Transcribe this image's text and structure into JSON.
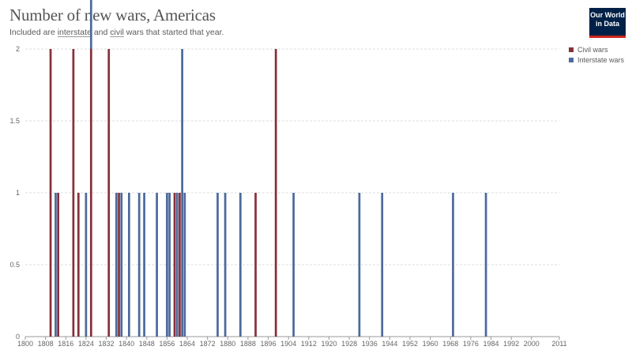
{
  "header": {
    "title": "Number of new wars, Americas",
    "subtitle_parts": [
      "Included are ",
      "interstate",
      " and ",
      "civil",
      " wars that started that year."
    ]
  },
  "logo": {
    "line1": "Our World",
    "line2": "in Data"
  },
  "colors": {
    "civil": "#883039",
    "interstate": "#4c6a9c",
    "grid": "#dddddd",
    "axis": "#999999",
    "logo_bg": "#002147",
    "logo_accent": "#ce261e"
  },
  "chart_data": {
    "type": "bar",
    "stacked": true,
    "title": "Number of new wars, Americas",
    "subtitle": "Included are interstate and civil wars that started that year.",
    "xlabel": "",
    "ylabel": "",
    "xlim": [
      1800,
      2011
    ],
    "ylim": [
      0,
      2
    ],
    "grid": true,
    "legend_position": "top-right",
    "x_ticks": [
      1800,
      1808,
      1816,
      1824,
      1832,
      1840,
      1848,
      1856,
      1864,
      1872,
      1880,
      1888,
      1896,
      1904,
      1912,
      1920,
      1928,
      1936,
      1944,
      1952,
      1960,
      1968,
      1976,
      1984,
      1992,
      2000,
      2011
    ],
    "y_ticks": [
      "0",
      "0.5",
      "1",
      "1.5",
      "2"
    ],
    "series": [
      {
        "name": "Civil wars",
        "color": "#883039",
        "points": [
          [
            1810,
            2
          ],
          [
            1813,
            1
          ],
          [
            1819,
            2
          ],
          [
            1821,
            1
          ],
          [
            1826,
            2
          ],
          [
            1833,
            2
          ],
          [
            1837,
            1
          ],
          [
            1859,
            1
          ],
          [
            1861,
            1
          ],
          [
            1891,
            1
          ],
          [
            1899,
            2
          ]
        ]
      },
      {
        "name": "Interstate wars",
        "color": "#4c6a9c",
        "points": [
          [
            1812,
            1
          ],
          [
            1824,
            1
          ],
          [
            1826,
            1
          ],
          [
            1836,
            1
          ],
          [
            1838,
            1
          ],
          [
            1841,
            1
          ],
          [
            1845,
            1
          ],
          [
            1847,
            1
          ],
          [
            1852,
            1
          ],
          [
            1856,
            1
          ],
          [
            1857,
            1
          ],
          [
            1860,
            1
          ],
          [
            1862,
            2
          ],
          [
            1863,
            1
          ],
          [
            1876,
            1
          ],
          [
            1879,
            1
          ],
          [
            1885,
            1
          ],
          [
            1906,
            1
          ],
          [
            1932,
            1
          ],
          [
            1941,
            1
          ],
          [
            1969,
            1
          ],
          [
            1982,
            1
          ]
        ]
      }
    ]
  }
}
